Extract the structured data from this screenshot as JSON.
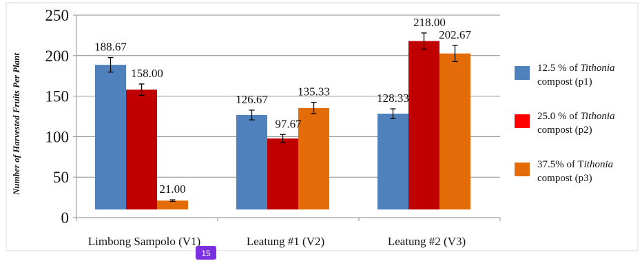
{
  "chart_data": {
    "type": "bar",
    "title": "",
    "xlabel": "",
    "ylabel": "Number of Harvested Fruits Per Plant",
    "ylim": [
      0,
      250
    ],
    "yticks": [
      0,
      50,
      100,
      150,
      200,
      250
    ],
    "grid": true,
    "legend_position": "right",
    "categories": [
      "Limbong Sampolo (V1)",
      "Leatung #1 (V2)",
      "Leatung #2 (V3)"
    ],
    "series": [
      {
        "name": "12.5 % of Tithonia compost (p1)",
        "name_pre": "12.5 % of ",
        "name_italic": "Tithonia",
        "name_post": "compost (p1)",
        "color": "#4f81bd",
        "values": [
          188.67,
          126.67,
          128.33
        ],
        "labels": [
          "188.67",
          "126.67",
          "128.33"
        ],
        "errors": [
          9,
          6,
          6
        ]
      },
      {
        "name": "25.0 % of Tithonia compost (p2)",
        "name_pre": "25.0 % of ",
        "name_italic": "Tithonia",
        "name_post": "compost (p2)",
        "color": "#c00000",
        "values": [
          158.0,
          97.67,
          218.0
        ],
        "labels": [
          "158.00",
          "97.67",
          "218.00"
        ],
        "errors": [
          7,
          5,
          10
        ]
      },
      {
        "name": "37.5% of Tithonia compost (p3)",
        "name_pre": "37.5% of T",
        "name_italic": "ithonia",
        "name_post": "compost (p3)",
        "color": "#e36c09",
        "values": [
          21.0,
          135.33,
          202.67
        ],
        "labels": [
          "21.00",
          "135.33",
          "202.67"
        ],
        "errors": [
          1,
          7,
          10
        ]
      }
    ]
  },
  "legend_swatch_colors": [
    "#4f81bd",
    "#ff0000",
    "#e36c09"
  ],
  "page_badge": "15"
}
